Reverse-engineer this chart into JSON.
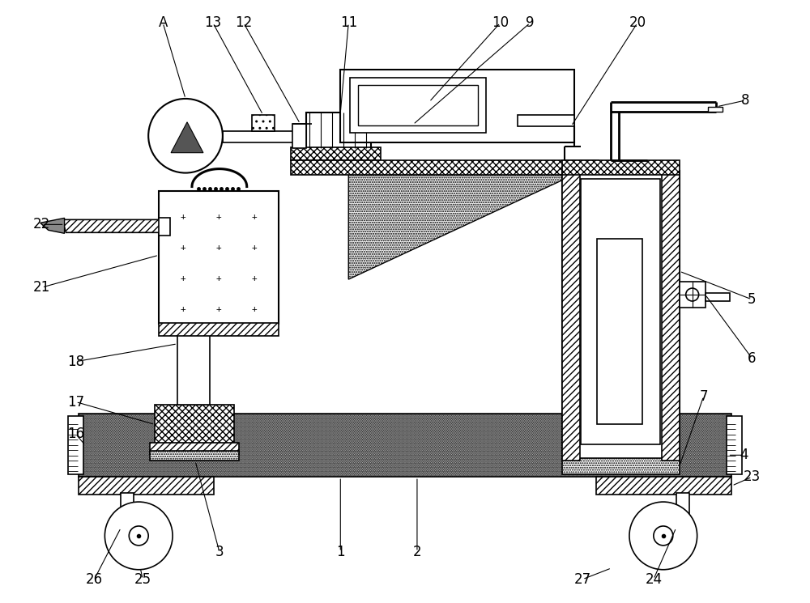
{
  "bg_color": "#ffffff",
  "line_color": "#000000",
  "fig_width": 10.0,
  "fig_height": 7.45,
  "lw": 1.0
}
